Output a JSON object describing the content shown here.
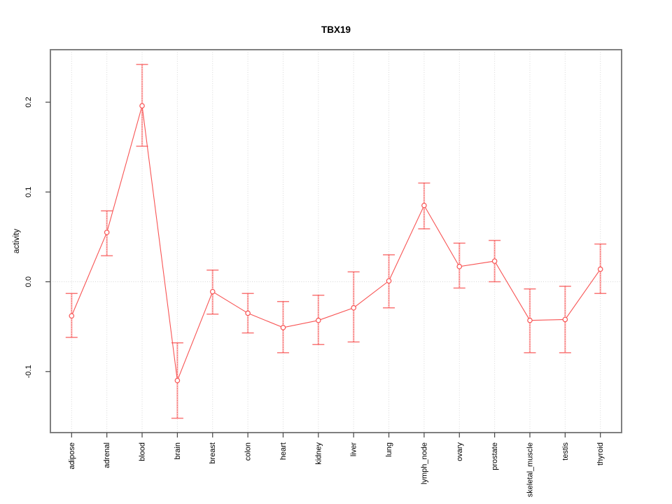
{
  "title": "TBX19",
  "chart_data": {
    "type": "line",
    "title": "TBX19",
    "xlabel": "",
    "ylabel": "activity",
    "legend": "none",
    "grid": "vertical dotted line at each category and horizontal dotted line at y=0",
    "categories": [
      "adipose",
      "adrenal",
      "blood",
      "brain",
      "breast",
      "colon",
      "heart",
      "kidney",
      "liver",
      "lung",
      "lymph_node",
      "ovary",
      "prostate",
      "skeletal_muscle",
      "testis",
      "thyroid"
    ],
    "series": [
      {
        "name": "activity",
        "values": [
          -0.038,
          0.055,
          0.196,
          -0.11,
          -0.011,
          -0.035,
          -0.051,
          -0.043,
          -0.029,
          0.001,
          0.085,
          0.017,
          0.023,
          -0.043,
          -0.042,
          0.014
        ],
        "error_low": [
          -0.062,
          0.029,
          0.151,
          -0.152,
          -0.036,
          -0.057,
          -0.079,
          -0.07,
          -0.067,
          -0.029,
          0.059,
          -0.007,
          0.0,
          -0.079,
          -0.079,
          -0.013
        ],
        "error_high": [
          -0.013,
          0.079,
          0.242,
          -0.068,
          0.013,
          -0.013,
          -0.022,
          -0.015,
          0.011,
          0.03,
          0.11,
          0.043,
          0.046,
          -0.008,
          -0.005,
          0.042
        ]
      }
    ],
    "ylim": [
      -0.168,
      0.2585
    ],
    "yticks": [
      -0.1,
      0.0,
      0.1,
      0.2
    ],
    "ytick_labels": [
      "-0.1",
      "0.0",
      "0.1",
      "0.2"
    ],
    "marker": "open-circle",
    "colors": {
      "series": "#f85454",
      "error_bar_pale": "#fbadad",
      "grid": "#d8d8d8",
      "frame": "#808080",
      "tick": "#444444",
      "text": "#000000",
      "background": "#ffffff"
    }
  }
}
